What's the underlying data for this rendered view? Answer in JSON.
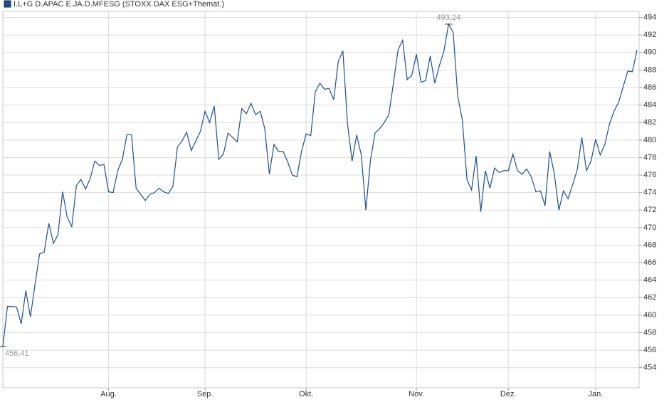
{
  "chart_data": {
    "type": "line",
    "series": [
      {
        "name": "I.L+G D.APAC E.JA.D.MFESG (STOXX DAX ESG+Themat.)",
        "color": "#1f4f8f",
        "values": [
          456.41,
          461,
          461,
          460.9,
          459,
          462.8,
          459.8,
          463.5,
          467,
          467.2,
          470.5,
          468.2,
          469.2,
          474.1,
          471.2,
          470.1,
          474.8,
          475.5,
          474.4,
          475.6,
          477.6,
          477.1,
          477.2,
          474.1,
          474,
          476.5,
          477.8,
          480.6,
          480.6,
          474.5,
          473.8,
          473.1,
          473.8,
          474,
          474.5,
          474.1,
          473.9,
          474.7,
          479.2,
          479.9,
          480.9,
          478.8,
          479.9,
          481,
          483.3,
          482,
          483.9,
          477.8,
          478.4,
          480.8,
          480.3,
          479.8,
          483.6,
          483,
          484.2,
          482.9,
          483.3,
          481.3,
          476.1,
          479.5,
          478.7,
          478.7,
          477.5,
          476,
          475.8,
          478.7,
          480.7,
          480.5,
          485.5,
          486.5,
          485.8,
          485.9,
          484.6,
          489,
          490.2,
          481.9,
          477.6,
          480.6,
          478.3,
          472,
          477.7,
          480.8,
          481.3,
          482,
          482.9,
          486.5,
          490.3,
          491.4,
          486.9,
          487.4,
          489.8,
          486.6,
          486.8,
          489.6,
          486.5,
          488.5,
          490.2,
          493.24,
          492.3,
          485,
          482.3,
          475.5,
          474.3,
          478.2,
          471.8,
          476.5,
          474.5,
          476.8,
          476.3,
          476.5,
          476.5,
          478.4,
          476.5,
          476.1,
          476.7,
          475.8,
          474.1,
          474.2,
          472.5,
          478.7,
          476.2,
          472,
          474.2,
          473.3,
          474.9,
          476.6,
          480.3,
          476.5,
          477.6,
          480.1,
          478.3,
          479.5,
          481.8,
          483.3,
          484.3,
          486.1,
          487.9,
          487.8,
          490.3
        ]
      }
    ],
    "xlim": [
      0,
      138
    ],
    "xticks": [
      {
        "value": 23,
        "label": "Aug."
      },
      {
        "value": 44,
        "label": "Sep."
      },
      {
        "value": 66,
        "label": "Okt."
      },
      {
        "value": 90,
        "label": "Nov."
      },
      {
        "value": 110,
        "label": "Dez."
      },
      {
        "value": 129,
        "label": "Jan."
      }
    ],
    "ylim": [
      451.7,
      494.7
    ],
    "yticks": [
      454,
      456,
      458,
      460,
      462,
      464,
      466,
      468,
      470,
      472,
      474,
      476,
      478,
      480,
      482,
      484,
      486,
      488,
      490,
      492,
      494
    ],
    "grid": true,
    "annotations": [
      {
        "x": 97,
        "value": 493.24,
        "label": "493,24"
      },
      {
        "x": 0,
        "value": 456.41,
        "label": "456,41"
      }
    ]
  }
}
